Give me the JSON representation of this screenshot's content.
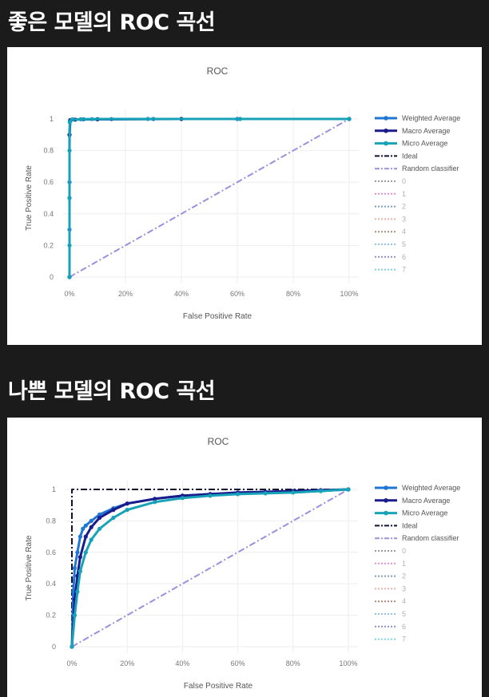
{
  "sections": [
    {
      "heading": "좋은 모델의 ROC 곡선"
    },
    {
      "heading": "나쁜 모델의 ROC 곡선"
    }
  ],
  "chart_data": [
    {
      "type": "line",
      "title": "ROC",
      "xlabel": "False Positive Rate",
      "ylabel": "True Positive Rate",
      "xlim": [
        0,
        1
      ],
      "ylim": [
        0,
        1
      ],
      "x_ticks": [
        "0%",
        "20%",
        "40%",
        "60%",
        "80%",
        "100%"
      ],
      "y_ticks": [
        "0",
        "0.2",
        "0.4",
        "0.6",
        "0.8",
        "1"
      ],
      "grid": true,
      "legend_position": "right",
      "series": [
        {
          "name": "Weighted Average",
          "color": "#1f77d4",
          "style": "solid-markers",
          "points": [
            [
              0,
              0
            ],
            [
              0,
              0.3
            ],
            [
              0,
              0.6
            ],
            [
              0,
              0.9
            ],
            [
              0.002,
              0.99
            ],
            [
              0.01,
              0.997
            ],
            [
              0.05,
              0.998
            ],
            [
              0.15,
              0.999
            ],
            [
              0.3,
              1
            ],
            [
              0.6,
              1
            ],
            [
              1,
              1
            ]
          ]
        },
        {
          "name": "Macro Average",
          "color": "#1a1c8c",
          "style": "solid-markers",
          "points": [
            [
              0,
              0
            ],
            [
              0,
              0.5
            ],
            [
              0,
              0.9
            ],
            [
              0.003,
              0.99
            ],
            [
              0.02,
              0.996
            ],
            [
              0.1,
              0.998
            ],
            [
              0.4,
              1
            ],
            [
              1,
              1
            ]
          ]
        },
        {
          "name": "Micro Average",
          "color": "#17a2b8",
          "style": "solid-markers",
          "points": [
            [
              0,
              0
            ],
            [
              0,
              0.2
            ],
            [
              0,
              0.5
            ],
            [
              0,
              0.8
            ],
            [
              0.001,
              0.98
            ],
            [
              0.008,
              0.995
            ],
            [
              0.04,
              0.998
            ],
            [
              0.08,
              0.999
            ],
            [
              0.28,
              1
            ],
            [
              0.61,
              1
            ],
            [
              1,
              1
            ]
          ]
        },
        {
          "name": "Ideal",
          "color": "#111133",
          "style": "dashdot",
          "points": [
            [
              0,
              0
            ],
            [
              0,
              1
            ],
            [
              1,
              1
            ]
          ]
        },
        {
          "name": "Random classifier",
          "color": "#9b8fe0",
          "style": "dashdot",
          "points": [
            [
              0,
              0
            ],
            [
              1,
              1
            ]
          ]
        },
        {
          "name": "0",
          "color": "#9d9d9d",
          "style": "dotted",
          "points": []
        },
        {
          "name": "1",
          "color": "#e48dd3",
          "style": "dotted",
          "points": []
        },
        {
          "name": "2",
          "color": "#7f9db6",
          "style": "dotted",
          "points": []
        },
        {
          "name": "3",
          "color": "#f0b0a8",
          "style": "dotted",
          "points": []
        },
        {
          "name": "4",
          "color": "#b58b7d",
          "style": "dotted",
          "points": []
        },
        {
          "name": "5",
          "color": "#8ec3ee",
          "style": "dotted",
          "points": []
        },
        {
          "name": "6",
          "color": "#8e91c9",
          "style": "dotted",
          "points": []
        },
        {
          "name": "7",
          "color": "#7fd7de",
          "style": "dotted",
          "points": []
        }
      ]
    },
    {
      "type": "line",
      "title": "ROC",
      "xlabel": "False Positive Rate",
      "ylabel": "True Positive Rate",
      "xlim": [
        0,
        1
      ],
      "ylim": [
        0,
        1
      ],
      "x_ticks": [
        "0%",
        "20%",
        "40%",
        "60%",
        "80%",
        "100%"
      ],
      "y_ticks": [
        "0",
        "0.2",
        "0.4",
        "0.6",
        "0.8",
        "1"
      ],
      "grid": true,
      "legend_position": "right",
      "series": [
        {
          "name": "Weighted Average",
          "color": "#1f77d4",
          "style": "solid-markers",
          "points": [
            [
              0,
              0
            ],
            [
              0.005,
              0.35
            ],
            [
              0.01,
              0.5
            ],
            [
              0.02,
              0.6
            ],
            [
              0.03,
              0.7
            ],
            [
              0.04,
              0.75
            ],
            [
              0.05,
              0.77
            ],
            [
              0.07,
              0.8
            ],
            [
              0.1,
              0.84
            ],
            [
              0.15,
              0.88
            ],
            [
              0.2,
              0.91
            ],
            [
              0.3,
              0.94
            ],
            [
              0.4,
              0.96
            ],
            [
              0.5,
              0.97
            ],
            [
              0.6,
              0.975
            ],
            [
              0.7,
              0.98
            ],
            [
              0.8,
              0.985
            ],
            [
              0.9,
              0.99
            ],
            [
              1,
              1
            ]
          ]
        },
        {
          "name": "Macro Average",
          "color": "#1a1c8c",
          "style": "solid-markers",
          "points": [
            [
              0,
              0
            ],
            [
              0.01,
              0.3
            ],
            [
              0.02,
              0.45
            ],
            [
              0.03,
              0.57
            ],
            [
              0.05,
              0.7
            ],
            [
              0.07,
              0.76
            ],
            [
              0.1,
              0.82
            ],
            [
              0.15,
              0.87
            ],
            [
              0.2,
              0.91
            ],
            [
              0.3,
              0.94
            ],
            [
              0.4,
              0.96
            ],
            [
              0.5,
              0.97
            ],
            [
              0.6,
              0.98
            ],
            [
              0.7,
              0.985
            ],
            [
              0.8,
              0.99
            ],
            [
              0.9,
              0.995
            ],
            [
              1,
              1
            ]
          ]
        },
        {
          "name": "Micro Average",
          "color": "#17a2b8",
          "style": "solid-markers",
          "points": [
            [
              0,
              0
            ],
            [
              0.01,
              0.2
            ],
            [
              0.02,
              0.35
            ],
            [
              0.03,
              0.48
            ],
            [
              0.05,
              0.6
            ],
            [
              0.07,
              0.68
            ],
            [
              0.1,
              0.75
            ],
            [
              0.15,
              0.82
            ],
            [
              0.2,
              0.87
            ],
            [
              0.3,
              0.92
            ],
            [
              0.4,
              0.945
            ],
            [
              0.5,
              0.96
            ],
            [
              0.6,
              0.97
            ],
            [
              0.7,
              0.975
            ],
            [
              0.8,
              0.98
            ],
            [
              0.9,
              0.99
            ],
            [
              1,
              1
            ]
          ]
        },
        {
          "name": "Ideal",
          "color": "#111133",
          "style": "dashdot",
          "points": [
            [
              0,
              0
            ],
            [
              0,
              1
            ],
            [
              1,
              1
            ]
          ]
        },
        {
          "name": "Random classifier",
          "color": "#9b8fe0",
          "style": "dashdot",
          "points": [
            [
              0,
              0
            ],
            [
              1,
              1
            ]
          ]
        },
        {
          "name": "0",
          "color": "#9d9d9d",
          "style": "dotted",
          "points": []
        },
        {
          "name": "1",
          "color": "#e48dd3",
          "style": "dotted",
          "points": []
        },
        {
          "name": "2",
          "color": "#7f9db6",
          "style": "dotted",
          "points": []
        },
        {
          "name": "3",
          "color": "#f0b0a8",
          "style": "dotted",
          "points": []
        },
        {
          "name": "4",
          "color": "#b58b7d",
          "style": "dotted",
          "points": []
        },
        {
          "name": "5",
          "color": "#8ec3ee",
          "style": "dotted",
          "points": []
        },
        {
          "name": "6",
          "color": "#8e91c9",
          "style": "dotted",
          "points": []
        },
        {
          "name": "7",
          "color": "#7fd7de",
          "style": "dotted",
          "points": []
        }
      ]
    }
  ]
}
